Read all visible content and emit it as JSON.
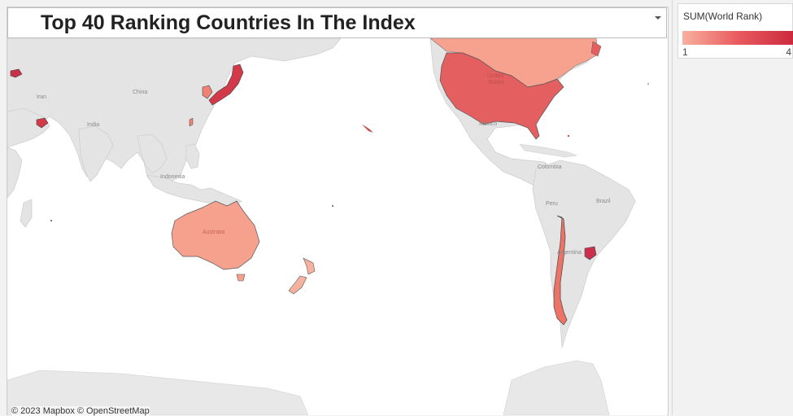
{
  "title": "Top 40 Ranking Countries In The Index",
  "attribution": "© 2023 Mapbox © OpenStreetMap",
  "legend": {
    "title": "SUM(World Rank)",
    "min_label": "1",
    "max_label": "4",
    "color_low": "#f8b0a0",
    "color_high": "#cc2a3e"
  },
  "basemap_labels": {
    "iran": "Iran",
    "china": "China",
    "india": "India",
    "indonesia": "Indonesia",
    "mexico": "Mexico",
    "colombia": "Colombia",
    "peru": "Peru",
    "brazil": "Brazil",
    "argentina": "Argentina",
    "united_states_1": "United",
    "united_states_2": "States",
    "australia": "Australia"
  },
  "highlighted_countries": [
    "United States",
    "Canada",
    "Japan",
    "South Korea",
    "Australia",
    "New Zealand",
    "Chile",
    "Uruguay",
    "United Arab Emirates",
    "Cyprus",
    "Taiwan"
  ]
}
